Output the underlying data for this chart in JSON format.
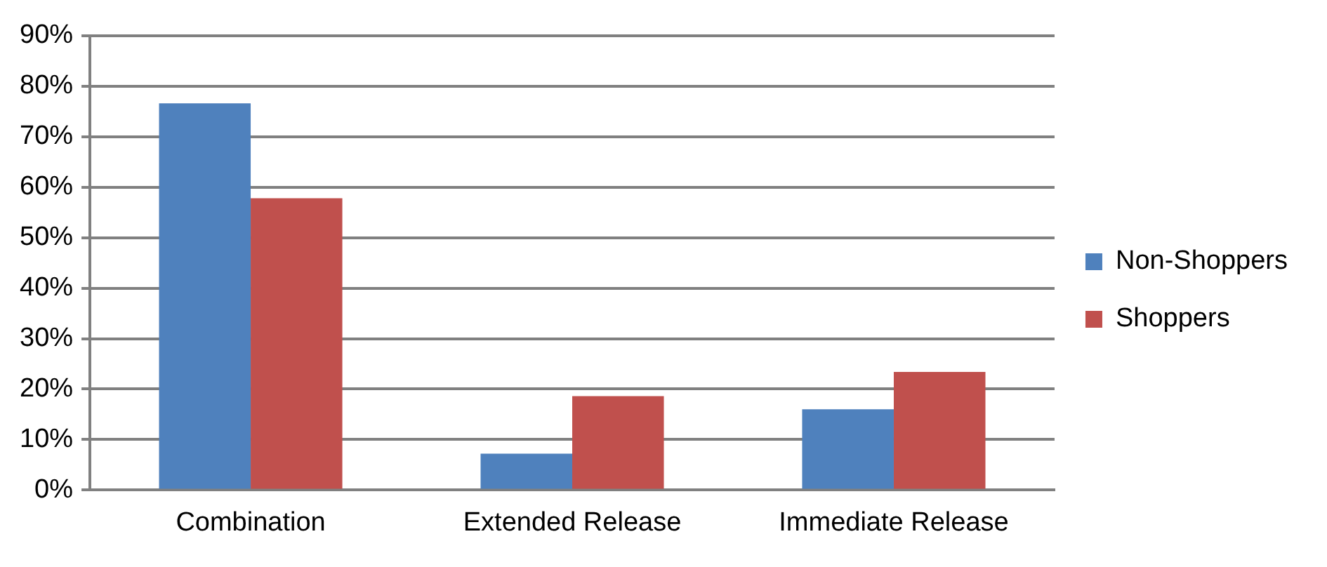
{
  "chart_data": {
    "type": "bar",
    "categories": [
      "Combination",
      "Extended Release",
      "Immediate Release"
    ],
    "series": [
      {
        "name": "Non-Shoppers",
        "color": "#4f81bd",
        "values": [
          76.6,
          7.2,
          16.0
        ]
      },
      {
        "name": "Shoppers",
        "color": "#c0504d",
        "values": [
          57.8,
          18.6,
          23.4
        ]
      }
    ],
    "ylim": [
      0,
      90
    ],
    "yticks": [
      {
        "value": 0,
        "label": "0%"
      },
      {
        "value": 10,
        "label": "10%"
      },
      {
        "value": 20,
        "label": "20%"
      },
      {
        "value": 30,
        "label": "30%"
      },
      {
        "value": 40,
        "label": "40%"
      },
      {
        "value": 50,
        "label": "50%"
      },
      {
        "value": 60,
        "label": "60%"
      },
      {
        "value": 70,
        "label": "70%"
      },
      {
        "value": 80,
        "label": "80%"
      },
      {
        "value": 90,
        "label": "90%"
      }
    ],
    "grid": "y",
    "legend": "right"
  }
}
